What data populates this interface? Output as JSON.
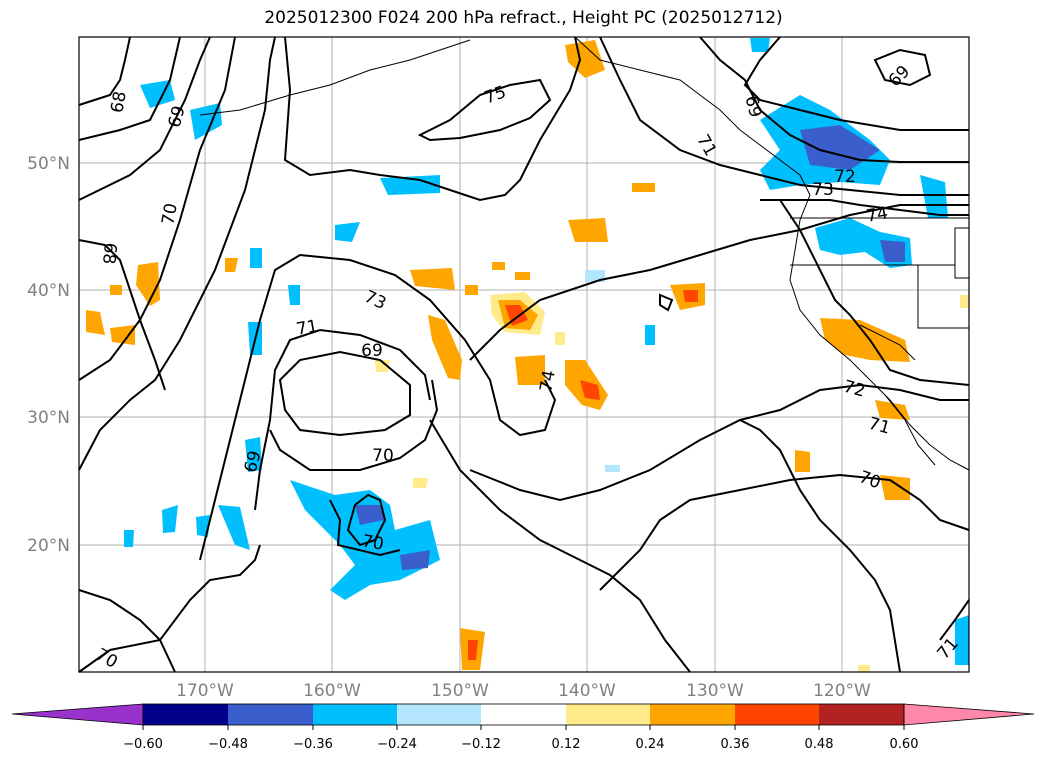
{
  "title": "2025012300 F024 200 hPa refract., Height PC (2025012712)",
  "map": {
    "lat_labels": [
      "50°N",
      "40°N",
      "30°N",
      "20°N"
    ],
    "lon_labels": [
      "170°W",
      "160°W",
      "150°W",
      "140°W",
      "130°W",
      "120°W"
    ],
    "contour_labels": [
      "75",
      "69",
      "68",
      "70",
      "69",
      "68",
      "73",
      "71",
      "69",
      "74",
      "70",
      "69",
      "70",
      "70",
      "71",
      "73",
      "72",
      "74",
      "72",
      "71",
      "70",
      "71",
      "69"
    ],
    "fill_colors": {
      "neg_024": "#00bfff",
      "neg_036": "#3a5fcd",
      "neg_012": "#b3e5fc",
      "pos_012": "#ffeb8a",
      "pos_024": "#ffa500",
      "pos_036": "#ff4500"
    }
  },
  "colorbar": {
    "ticks": [
      "−0.60",
      "−0.48",
      "−0.36",
      "−0.24",
      "−0.12",
      "0.12",
      "0.24",
      "0.36",
      "0.48",
      "0.60"
    ],
    "colors": [
      "#9932cc",
      "#00008b",
      "#3a5fcd",
      "#00bfff",
      "#b3e5fc",
      "#ffffff",
      "#ffeb8a",
      "#ffa500",
      "#ff4500",
      "#b22222",
      "#ff88aa",
      "#ff88aa"
    ]
  }
}
